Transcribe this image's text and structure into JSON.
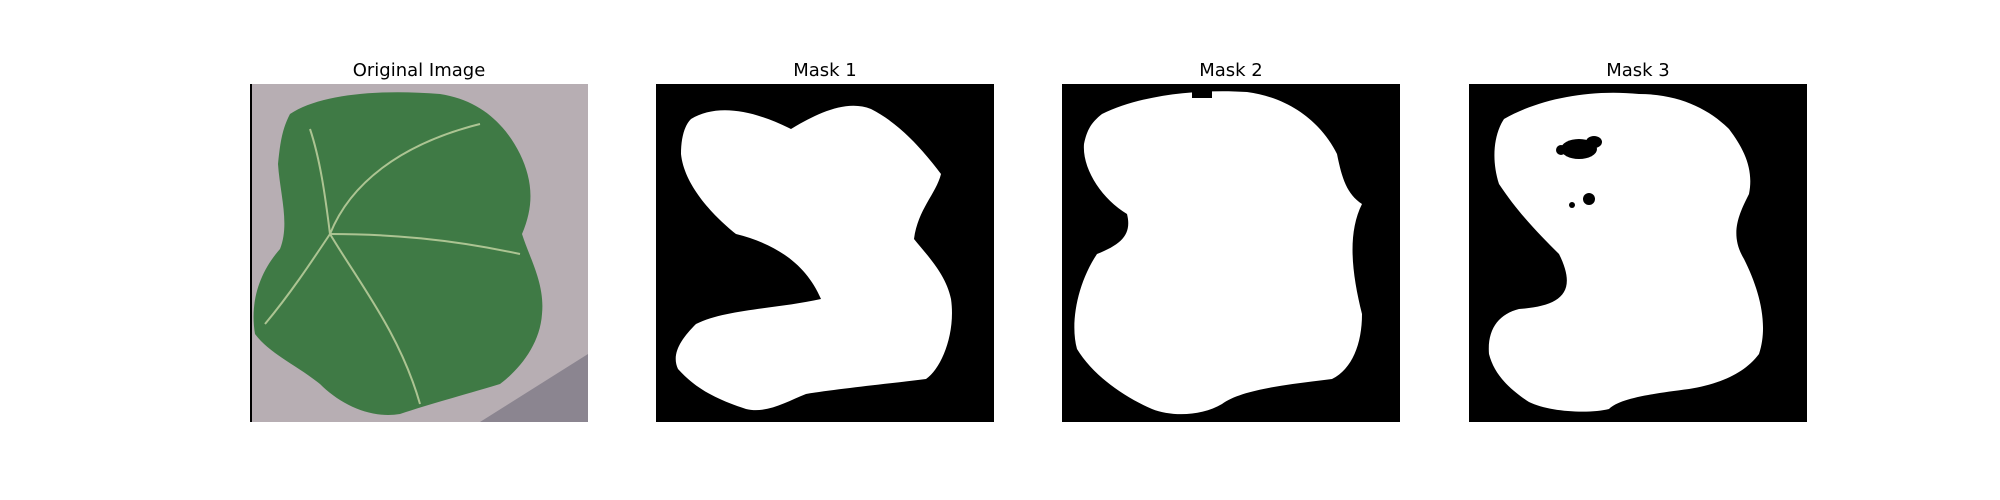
{
  "panels": [
    {
      "id": "original",
      "title": "Original Image"
    },
    {
      "id": "mask1",
      "title": "Mask 1"
    },
    {
      "id": "mask2",
      "title": "Mask 2"
    },
    {
      "id": "mask3",
      "title": "Mask 3"
    }
  ],
  "colors": {
    "background": "#ffffff",
    "mask_background": "#000000",
    "mask_foreground": "#ffffff",
    "leaf": "#3f7a45",
    "leaf_vein": "#c8d7a6",
    "surface": "#b7aeb3",
    "shadow": "#8b8590"
  }
}
